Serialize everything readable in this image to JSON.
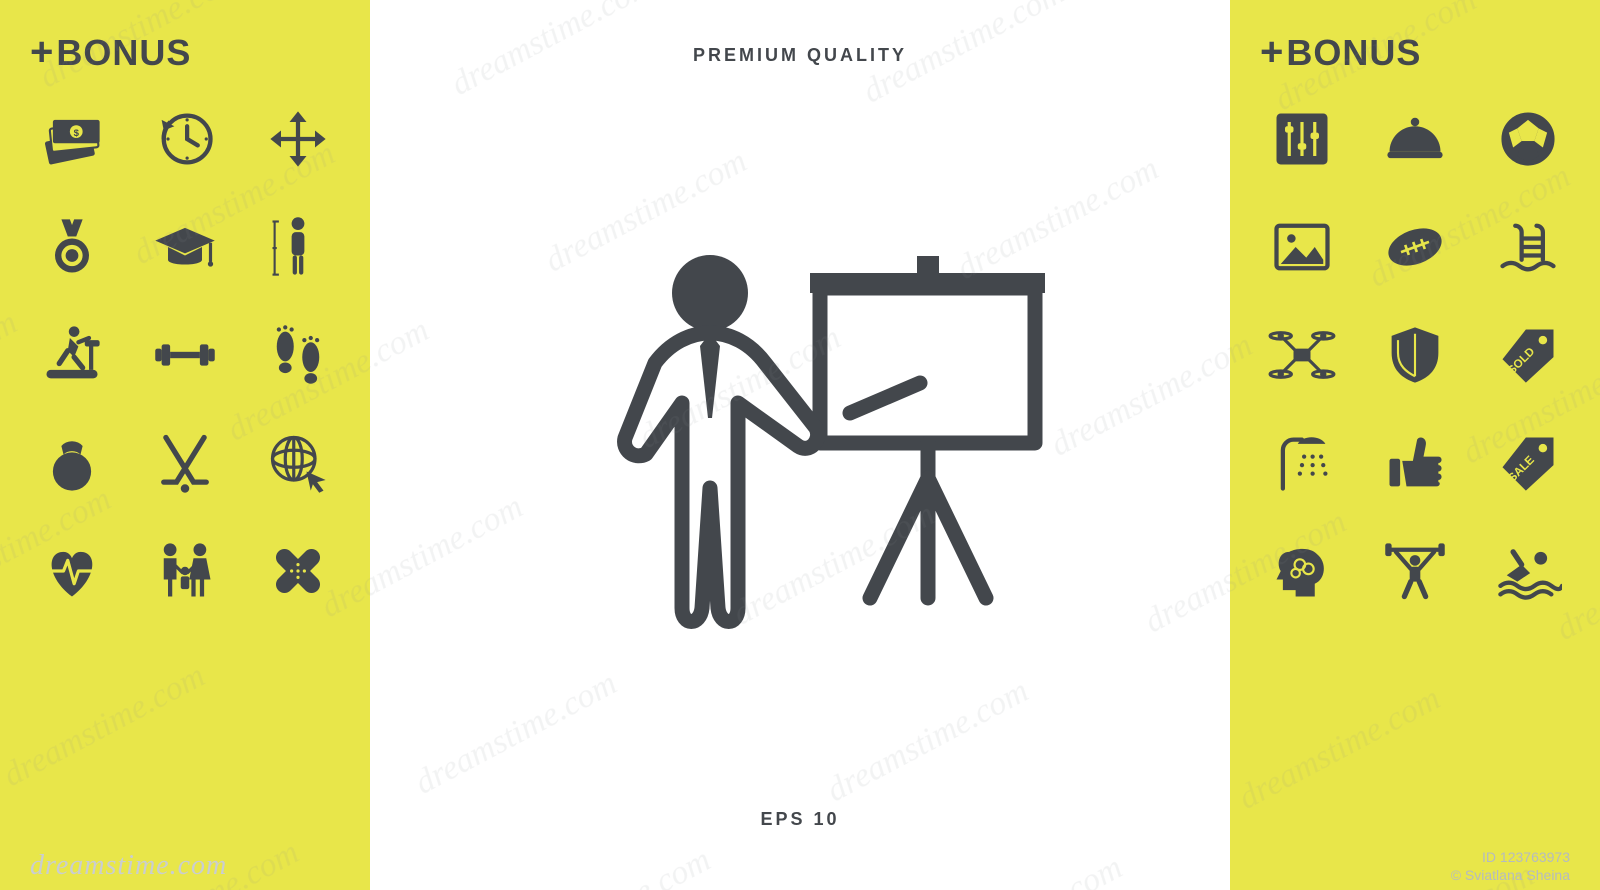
{
  "colors": {
    "panel_bg": "#e8e64a",
    "icon_fill": "#43474c",
    "center_bg": "#ffffff",
    "text": "#43474c",
    "watermark": "#c9cdd1"
  },
  "header": {
    "bonus_plus": "+",
    "bonus_text": "BONUS"
  },
  "center": {
    "top_label": "PREMIUM  QUALITY",
    "bottom_label": "EPS 10"
  },
  "left_icons": [
    "money-stack",
    "clock-back",
    "move-arrows",
    "medal",
    "graduation-cap",
    "body-measure",
    "treadmill",
    "barbell",
    "footprints",
    "kettlebell",
    "hockey-sticks",
    "globe-cursor",
    "heartbeat",
    "family",
    "bandages"
  ],
  "right_icons": [
    "mixer-sliders",
    "dish-cover",
    "soccer-ball",
    "picture-frame",
    "american-football",
    "swimming-pool",
    "drone",
    "shield",
    "sold-tag",
    "shower",
    "thumbs-up",
    "sale-tag",
    "head-brain",
    "weightlifter",
    "swimmer"
  ],
  "main_icon": {
    "name": "presenter-flipchart",
    "stroke": "#43474c",
    "stroke_width": 16
  },
  "watermark": {
    "brand": "dreamstime.com",
    "id": "ID 123763973",
    "author": "© Sviatlana Sheina"
  }
}
